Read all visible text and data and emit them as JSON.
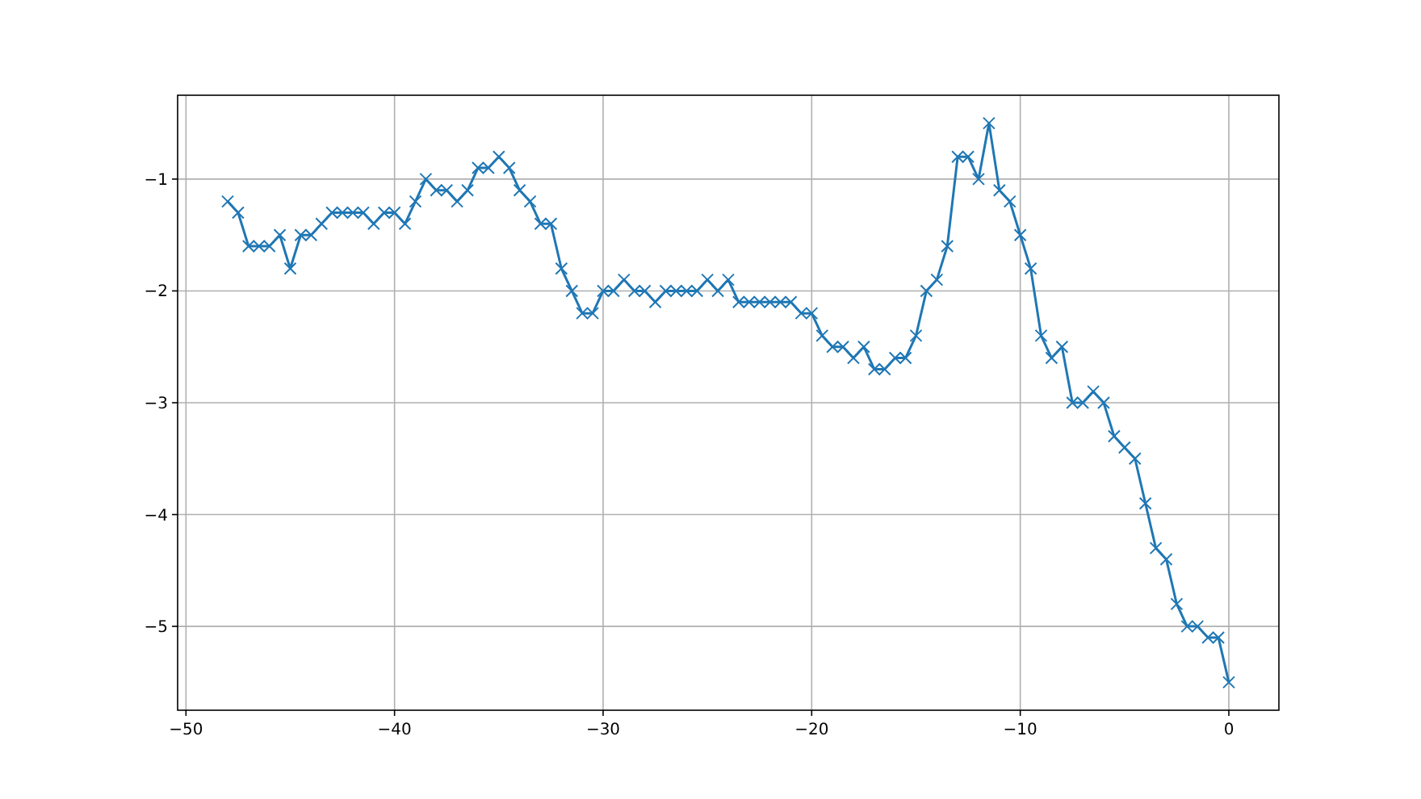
{
  "chart_data": {
    "type": "line",
    "marker": "cross",
    "grid": true,
    "line_style": "solid",
    "xlim": [
      -50.4,
      2.4
    ],
    "ylim": [
      -5.75,
      -0.25
    ],
    "xticks": [
      {
        "value": -50,
        "label": "−50"
      },
      {
        "value": -40,
        "label": "−40"
      },
      {
        "value": -30,
        "label": "−30"
      },
      {
        "value": -20,
        "label": "−20"
      },
      {
        "value": -10,
        "label": "−10"
      },
      0
    ],
    "yticks": [
      {
        "value": -5,
        "label": "−5"
      },
      {
        "value": -4,
        "label": "−4"
      },
      {
        "value": -3,
        "label": "−3"
      },
      {
        "value": -2,
        "label": "−2"
      },
      {
        "value": -1,
        "label": "−1"
      }
    ],
    "x": [
      -48,
      -47.5,
      -47,
      -46.5,
      -46,
      -45.5,
      -45,
      -44.5,
      -44,
      -43.5,
      -43,
      -42.5,
      -42,
      -41.5,
      -41,
      -40.5,
      -40,
      -39.5,
      -39,
      -38.5,
      -38,
      -37.5,
      -37,
      -36.5,
      -36,
      -35.5,
      -35,
      -34.5,
      -34,
      -33.5,
      -33,
      -32.5,
      -32,
      -31.5,
      -31,
      -30.5,
      -30,
      -29.5,
      -29,
      -28.5,
      -28,
      -27.5,
      -27,
      -26.5,
      -26,
      -25.5,
      -25,
      -24.5,
      -24,
      -23.5,
      -23,
      -22.5,
      -22,
      -21.5,
      -21,
      -20.5,
      -20,
      -19.5,
      -19,
      -18.5,
      -18,
      -17.5,
      -17,
      -16.5,
      -16,
      -15.5,
      -15,
      -14.5,
      -14,
      -13.5,
      -13,
      -12.5,
      -12,
      -11.5,
      -11,
      -10.5,
      -10,
      -9.5,
      -9,
      -8.5,
      -8,
      -7.5,
      -7,
      -6.5,
      -6,
      -5.5,
      -5,
      -4.5,
      -4,
      -3.5,
      -3,
      -2.5,
      -2,
      -1.5,
      -1,
      -0.5,
      0
    ],
    "series": [
      {
        "color": "#1f77b4",
        "values": [
          -1.2,
          -1.3,
          -1.6,
          -1.6,
          -1.6,
          -1.5,
          -1.8,
          -1.5,
          -1.5,
          -1.4,
          -1.3,
          -1.3,
          -1.3,
          -1.3,
          -1.4,
          -1.3,
          -1.3,
          -1.4,
          -1.2,
          -1.0,
          -1.1,
          -1.1,
          -1.2,
          -1.1,
          -0.9,
          -0.9,
          -0.8,
          -0.9,
          -1.1,
          -1.2,
          -1.4,
          -1.4,
          -1.8,
          -2.0,
          -2.2,
          -2.2,
          -2.0,
          -2.0,
          -1.9,
          -2.0,
          -2.0,
          -2.1,
          -2.0,
          -2.0,
          -2.0,
          -2.0,
          -1.9,
          -2.0,
          -1.9,
          -2.1,
          -2.1,
          -2.1,
          -2.1,
          -2.1,
          -2.1,
          -2.2,
          -2.2,
          -2.4,
          -2.5,
          -2.5,
          -2.6,
          -2.5,
          -2.7,
          -2.7,
          -2.6,
          -2.6,
          -2.4,
          -2.0,
          -1.9,
          -1.6,
          -0.8,
          -0.8,
          -1.0,
          -0.5,
          -1.1,
          -1.2,
          -1.5,
          -1.8,
          -2.4,
          -2.6,
          -2.5,
          -3.0,
          -3.0,
          -2.9,
          -3.0,
          -3.3,
          -3.4,
          -3.5,
          -3.9,
          -4.3,
          -4.4,
          -4.8,
          -5.0,
          -5.0,
          -5.1,
          -5.1,
          -5.5
        ]
      }
    ]
  }
}
